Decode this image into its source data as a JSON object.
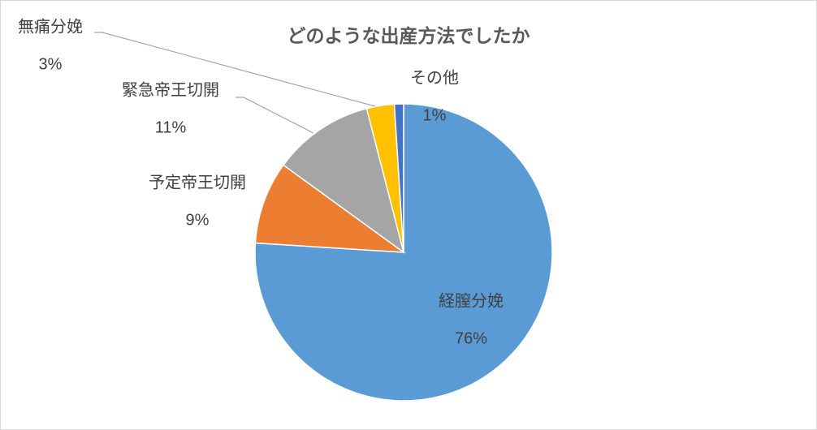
{
  "chart_data": {
    "type": "pie",
    "title": "どのような出産方法でしたか",
    "categories": [
      "経膣分娩",
      "予定帝王切開",
      "緊急帝王切開",
      "無痛分娩",
      "その他"
    ],
    "values": [
      76,
      9,
      11,
      3,
      1
    ],
    "value_labels": [
      "76%",
      "9%",
      "11%",
      "3%",
      "1%"
    ],
    "colors": [
      "#5b9bd5",
      "#ed7d31",
      "#a5a5a5",
      "#ffc000",
      "#4472c4"
    ]
  }
}
